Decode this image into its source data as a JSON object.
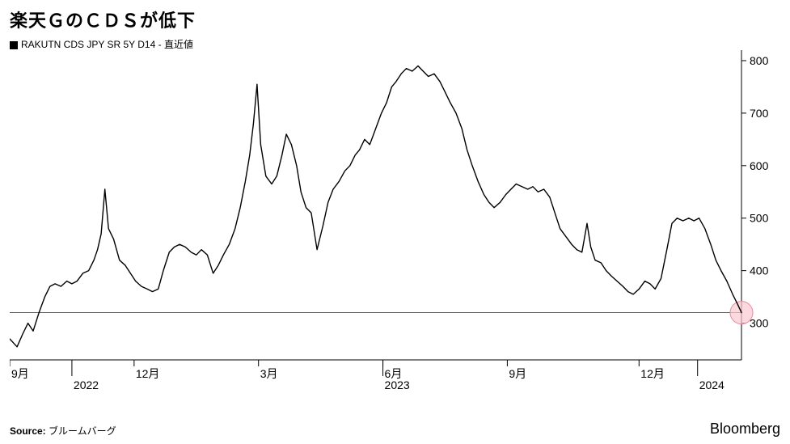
{
  "title": "楽天ＧのＣＤＳが低下",
  "legend": {
    "marker_color": "#000000",
    "label": "RAKUTN CDS JPY SR 5Y D14 - 直近値"
  },
  "source_label": "Source:",
  "source_value": "ブルームバーグ",
  "brand": "Bloomberg",
  "chart": {
    "type": "line",
    "background_color": "#ffffff",
    "line_color": "#000000",
    "line_width": 1.4,
    "grid_color": "#000000",
    "axis_color": "#000000",
    "ylim": [
      230,
      820
    ],
    "yticks": [
      300,
      400,
      500,
      600,
      700,
      800
    ],
    "y_tick_len": 6,
    "x_months": [
      {
        "t": 0.0,
        "label": "9月"
      },
      {
        "t": 0.17,
        "label": "12月"
      },
      {
        "t": 0.34,
        "label": "3月"
      },
      {
        "t": 0.51,
        "label": "6月"
      },
      {
        "t": 0.68,
        "label": "9月"
      },
      {
        "t": 0.86,
        "label": "12月"
      }
    ],
    "x_years": [
      {
        "t": 0.085,
        "label": "2022"
      },
      {
        "t": 0.51,
        "label": "2023"
      },
      {
        "t": 0.94,
        "label": "2024"
      }
    ],
    "x_tick_len_month": 8,
    "x_tick_len_year": 20,
    "reference_line": {
      "y": 320,
      "color": "#000000",
      "width": 0.6
    },
    "end_marker": {
      "t": 1.0,
      "y": 320,
      "r": 14,
      "fill": "#f9c9d0",
      "fill_opacity": 0.7,
      "stroke": "#e38ca0",
      "stroke_width": 1
    },
    "series": [
      [
        0.0,
        270
      ],
      [
        0.01,
        255
      ],
      [
        0.018,
        280
      ],
      [
        0.025,
        300
      ],
      [
        0.032,
        285
      ],
      [
        0.04,
        320
      ],
      [
        0.048,
        350
      ],
      [
        0.055,
        370
      ],
      [
        0.062,
        375
      ],
      [
        0.07,
        370
      ],
      [
        0.078,
        380
      ],
      [
        0.085,
        375
      ],
      [
        0.092,
        380
      ],
      [
        0.1,
        395
      ],
      [
        0.108,
        400
      ],
      [
        0.115,
        420
      ],
      [
        0.12,
        440
      ],
      [
        0.125,
        470
      ],
      [
        0.13,
        555
      ],
      [
        0.135,
        480
      ],
      [
        0.142,
        460
      ],
      [
        0.15,
        420
      ],
      [
        0.158,
        410
      ],
      [
        0.165,
        395
      ],
      [
        0.172,
        380
      ],
      [
        0.18,
        370
      ],
      [
        0.188,
        365
      ],
      [
        0.195,
        360
      ],
      [
        0.203,
        365
      ],
      [
        0.21,
        400
      ],
      [
        0.218,
        435
      ],
      [
        0.225,
        445
      ],
      [
        0.232,
        450
      ],
      [
        0.24,
        445
      ],
      [
        0.248,
        435
      ],
      [
        0.255,
        430
      ],
      [
        0.262,
        440
      ],
      [
        0.27,
        430
      ],
      [
        0.278,
        395
      ],
      [
        0.285,
        410
      ],
      [
        0.292,
        430
      ],
      [
        0.3,
        450
      ],
      [
        0.308,
        480
      ],
      [
        0.315,
        520
      ],
      [
        0.322,
        570
      ],
      [
        0.328,
        620
      ],
      [
        0.333,
        680
      ],
      [
        0.338,
        755
      ],
      [
        0.343,
        640
      ],
      [
        0.35,
        580
      ],
      [
        0.358,
        565
      ],
      [
        0.365,
        580
      ],
      [
        0.372,
        620
      ],
      [
        0.378,
        660
      ],
      [
        0.385,
        640
      ],
      [
        0.392,
        600
      ],
      [
        0.398,
        550
      ],
      [
        0.405,
        520
      ],
      [
        0.412,
        510
      ],
      [
        0.42,
        440
      ],
      [
        0.428,
        485
      ],
      [
        0.435,
        530
      ],
      [
        0.442,
        555
      ],
      [
        0.45,
        570
      ],
      [
        0.458,
        590
      ],
      [
        0.465,
        600
      ],
      [
        0.472,
        620
      ],
      [
        0.478,
        630
      ],
      [
        0.485,
        650
      ],
      [
        0.492,
        640
      ],
      [
        0.5,
        670
      ],
      [
        0.508,
        700
      ],
      [
        0.515,
        720
      ],
      [
        0.522,
        750
      ],
      [
        0.528,
        760
      ],
      [
        0.535,
        775
      ],
      [
        0.542,
        785
      ],
      [
        0.55,
        780
      ],
      [
        0.558,
        790
      ],
      [
        0.565,
        780
      ],
      [
        0.572,
        770
      ],
      [
        0.58,
        775
      ],
      [
        0.588,
        760
      ],
      [
        0.595,
        740
      ],
      [
        0.602,
        720
      ],
      [
        0.61,
        700
      ],
      [
        0.618,
        670
      ],
      [
        0.625,
        630
      ],
      [
        0.632,
        600
      ],
      [
        0.64,
        570
      ],
      [
        0.648,
        545
      ],
      [
        0.655,
        530
      ],
      [
        0.662,
        520
      ],
      [
        0.67,
        530
      ],
      [
        0.678,
        545
      ],
      [
        0.685,
        555
      ],
      [
        0.692,
        565
      ],
      [
        0.7,
        560
      ],
      [
        0.708,
        555
      ],
      [
        0.715,
        560
      ],
      [
        0.722,
        550
      ],
      [
        0.73,
        555
      ],
      [
        0.738,
        540
      ],
      [
        0.745,
        510
      ],
      [
        0.752,
        480
      ],
      [
        0.76,
        465
      ],
      [
        0.768,
        450
      ],
      [
        0.775,
        440
      ],
      [
        0.782,
        435
      ],
      [
        0.789,
        490
      ],
      [
        0.794,
        445
      ],
      [
        0.8,
        420
      ],
      [
        0.808,
        415
      ],
      [
        0.815,
        400
      ],
      [
        0.822,
        390
      ],
      [
        0.83,
        380
      ],
      [
        0.838,
        370
      ],
      [
        0.845,
        360
      ],
      [
        0.852,
        355
      ],
      [
        0.86,
        365
      ],
      [
        0.868,
        380
      ],
      [
        0.875,
        375
      ],
      [
        0.882,
        365
      ],
      [
        0.89,
        385
      ],
      [
        0.898,
        440
      ],
      [
        0.905,
        490
      ],
      [
        0.912,
        500
      ],
      [
        0.92,
        495
      ],
      [
        0.928,
        500
      ],
      [
        0.935,
        495
      ],
      [
        0.942,
        500
      ],
      [
        0.95,
        480
      ],
      [
        0.958,
        450
      ],
      [
        0.965,
        420
      ],
      [
        0.972,
        400
      ],
      [
        0.98,
        380
      ],
      [
        0.988,
        355
      ],
      [
        0.995,
        335
      ],
      [
        1.0,
        320
      ]
    ]
  }
}
